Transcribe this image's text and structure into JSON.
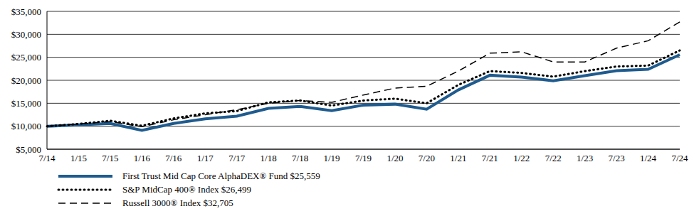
{
  "chart_data": {
    "type": "line",
    "categories": [
      "7/14",
      "1/15",
      "7/15",
      "1/16",
      "7/16",
      "1/17",
      "7/17",
      "1/18",
      "7/18",
      "1/19",
      "7/19",
      "1/20",
      "7/20",
      "1/21",
      "7/21",
      "1/22",
      "7/22",
      "1/23",
      "7/23",
      "1/24",
      "7/24"
    ],
    "series": [
      {
        "name": "First Trust Mid Cap Core AlphaDEX® Fund $25,559",
        "color": "#1f5b8e",
        "line_style": "solid",
        "values": [
          10000,
          10300,
          10600,
          9100,
          10600,
          11600,
          12200,
          13900,
          14300,
          13400,
          14600,
          14800,
          13700,
          17900,
          21100,
          20700,
          19900,
          21000,
          22100,
          22400,
          25559
        ]
      },
      {
        "name": "S&P MidCap 400® Index $26,499",
        "color": "#000000",
        "line_style": "dotted",
        "values": [
          10000,
          10500,
          11200,
          10100,
          11700,
          12800,
          13300,
          15200,
          15600,
          14500,
          15600,
          16000,
          15000,
          19000,
          22000,
          21600,
          20800,
          22000,
          23000,
          23200,
          26499
        ]
      },
      {
        "name": "Russell 3000® Index $32,705",
        "color": "#000000",
        "line_style": "dashed",
        "values": [
          10000,
          10500,
          11000,
          9900,
          11400,
          12500,
          13600,
          15000,
          15600,
          15200,
          16800,
          18300,
          18700,
          22000,
          25900,
          26200,
          24000,
          24000,
          27000,
          28600,
          32705
        ]
      }
    ],
    "ylim": [
      5000,
      35000
    ],
    "yticks": [
      {
        "value": 5000,
        "label": "$5,000"
      },
      {
        "value": 10000,
        "label": "$10,000"
      },
      {
        "value": 15000,
        "label": "$15,000"
      },
      {
        "value": 20000,
        "label": "$20,000"
      },
      {
        "value": 25000,
        "label": "$25,000"
      },
      {
        "value": 30000,
        "label": "$30,000"
      },
      {
        "value": 35000,
        "label": "$35,000"
      }
    ],
    "grid": true,
    "legend": "bottom"
  }
}
